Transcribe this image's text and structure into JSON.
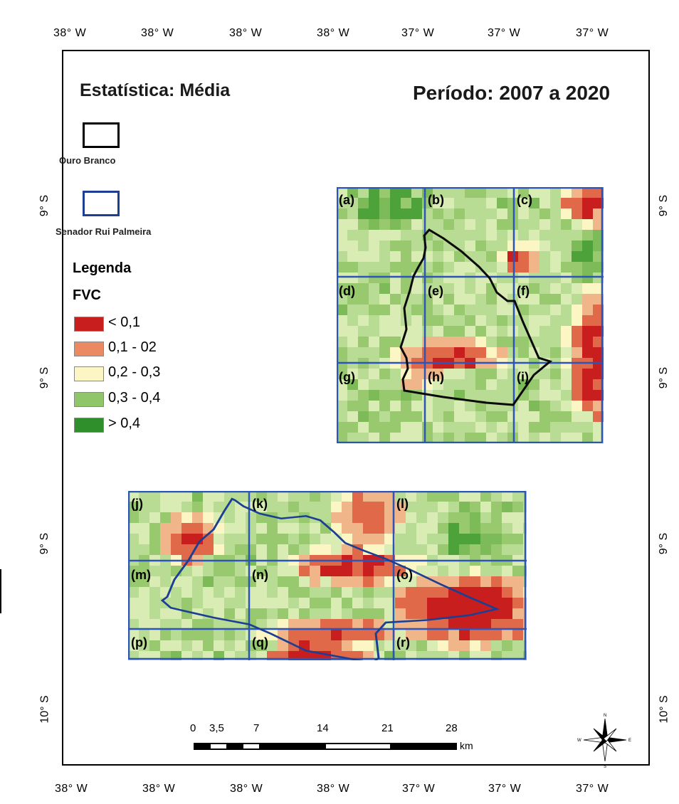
{
  "titles": {
    "statistic": "Estatística: Média",
    "period": "Período: 2007 a 2020"
  },
  "longitude_labels_top": [
    "38° W",
    "38° W",
    "38° W",
    "38° W",
    "37° W",
    "37° W",
    "37° W"
  ],
  "longitude_labels_bottom": [
    "38° W",
    "38° W",
    "38° W",
    "38° W",
    "37° W",
    "37° W",
    "37° W"
  ],
  "latitude_labels_left": [
    "9° S",
    "9° S",
    "9° S",
    "10° S"
  ],
  "latitude_labels_right": [
    "9° S",
    "9° S",
    "9° S",
    "10° S"
  ],
  "boundaries": {
    "ouro_branco": {
      "label": "Ouro Branco",
      "color": "#000000"
    },
    "senador": {
      "label": "Senador Rui Palmeira",
      "color": "#1c3f94"
    }
  },
  "legend": {
    "heading": "Legenda",
    "variable": "FVC",
    "classes": [
      {
        "label": "< 0,1",
        "color": "#c81e1e"
      },
      {
        "label": "0,1 - 02",
        "color": "#eb8a62"
      },
      {
        "label": "0,2 - 0,3",
        "color": "#fbf6c4"
      },
      {
        "label": "0,3 - 0,4",
        "color": "#90c66a"
      },
      {
        "label": "> 0,4",
        "color": "#2f8f2b"
      }
    ]
  },
  "panels_upper": [
    "(a)",
    "(b)",
    "(c)",
    "(d)",
    "(e)",
    "(f)",
    "(g)",
    "(h)",
    "(i)"
  ],
  "panels_lower": [
    "(j)",
    "(k)",
    "(l)",
    "(m)",
    "(n)",
    "(o)",
    "(p)",
    "(q)",
    "(r)"
  ],
  "scale_bar": {
    "ticks": [
      "0",
      "3,5",
      "7",
      "14",
      "21",
      "28"
    ],
    "unit": "km"
  },
  "compass": {
    "icon": "north-arrow-icon"
  }
}
